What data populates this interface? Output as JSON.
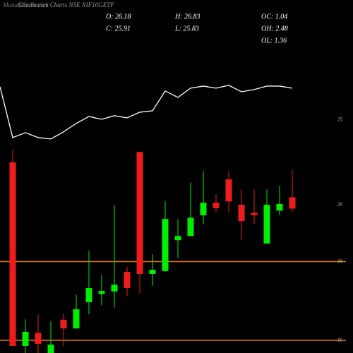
{
  "chart_data": {
    "type": "candlestick",
    "title": "Candlestick Charts NSE NIF10GETF",
    "watermark": "MunafaSutra.com",
    "info": [
      [
        "O: 26.18",
        "H: 26.83",
        "OC: 1.04"
      ],
      [
        "C: 25.91",
        "L: 25.83",
        "OH: 2.48"
      ],
      [
        null,
        null,
        "OL: 1.36"
      ]
    ],
    "open": [
      27.02,
      22.61,
      22.92,
      22.44,
      23.24,
      23.03,
      23.66,
      23.86,
      23.92,
      24.39,
      27.27,
      24.34,
      24.41,
      25.15,
      25.25,
      25.75,
      26.05,
      26.61,
      26.0,
      25.81,
      25.07,
      25.86,
      26.18
    ],
    "high": [
      27.32,
      23.25,
      23.36,
      23.2,
      23.37,
      23.83,
      24.9,
      24.31,
      26.0,
      24.51,
      27.27,
      24.81,
      26.08,
      25.66,
      26.54,
      26.81,
      26.25,
      26.8,
      26.37,
      26.37,
      26.37,
      26.46,
      26.83
    ],
    "low": [
      22.61,
      22.44,
      22.44,
      22.44,
      22.61,
      23.03,
      23.37,
      23.59,
      23.53,
      23.8,
      23.88,
      24.05,
      24.39,
      24.73,
      25.24,
      25.53,
      25.83,
      25.83,
      25.15,
      25.53,
      25.07,
      25.75,
      25.83
    ],
    "close": [
      22.61,
      22.95,
      22.66,
      22.64,
      23.03,
      23.49,
      24.0,
      23.93,
      24.08,
      24.0,
      24.34,
      24.44,
      25.66,
      25.25,
      25.69,
      26.05,
      25.92,
      26.08,
      25.61,
      25.75,
      26.0,
      26.02,
      25.91
    ],
    "up_color": "#00ee00",
    "down_color": "#ee1c1c",
    "ylim": [
      22.44,
      30.92
    ],
    "yticks": [
      26
    ],
    "line": {
      "color": "#ffffff",
      "axis": "y2",
      "values": [
        27.11,
        23.88,
        24.19,
        23.88,
        23.79,
        24.24,
        24.78,
        25.22,
        25.04,
        25.27,
        25.13,
        25.49,
        25.58,
        26.84,
        26.43,
        27.02,
        27.15,
        27.02,
        27.2,
        26.79,
        26.93,
        27.15,
        27.15,
        27.02
      ]
    },
    "y2lim": [
      10.19,
      32.62
    ],
    "y2ticks": [
      25,
      16,
      11
    ],
    "levels": [
      16,
      11
    ],
    "level_color": "#e07800"
  }
}
